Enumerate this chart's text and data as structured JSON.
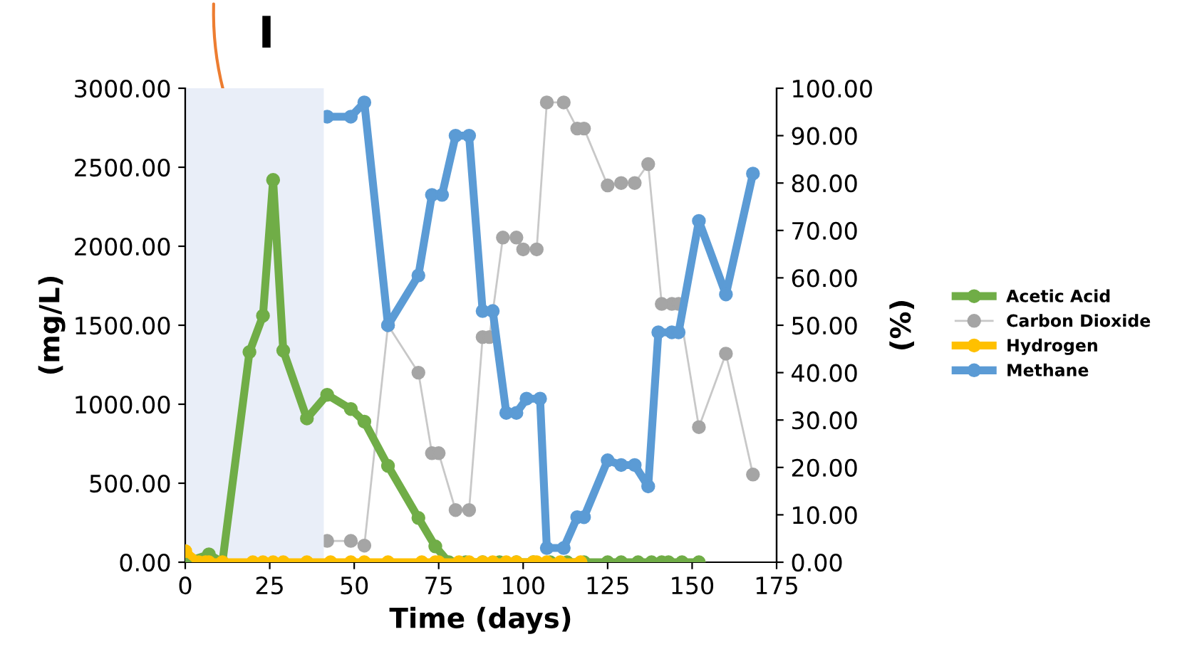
{
  "chart_data": {
    "type": "line",
    "title": "I",
    "xlabel": "Time (days)",
    "ylabel": "(mg/L)",
    "y2label": "(%)",
    "xlim": [
      0,
      175
    ],
    "xticks": [
      0,
      25,
      50,
      75,
      100,
      125,
      150,
      175
    ],
    "ylim": [
      0,
      3000
    ],
    "yticks": [
      {
        "value": 0,
        "label": "0.00"
      },
      {
        "value": 500,
        "label": "500.00"
      },
      {
        "value": 1000,
        "label": "1000.00"
      },
      {
        "value": 1500,
        "label": "1500.00"
      },
      {
        "value": 2000,
        "label": "2000.00"
      },
      {
        "value": 2500,
        "label": "2500.00"
      },
      {
        "value": 3000,
        "label": "3000.00"
      }
    ],
    "y2lim": [
      0,
      100
    ],
    "y2ticks": [
      {
        "value": 0,
        "label": "0.00"
      },
      {
        "value": 10,
        "label": "10.00"
      },
      {
        "value": 20,
        "label": "20.00"
      },
      {
        "value": 30,
        "label": "30.00"
      },
      {
        "value": 40,
        "label": "40.00"
      },
      {
        "value": 50,
        "label": "50.00"
      },
      {
        "value": 60,
        "label": "60.00"
      },
      {
        "value": 70,
        "label": "70.00"
      },
      {
        "value": 80,
        "label": "80.00"
      },
      {
        "value": 90,
        "label": "90.00"
      },
      {
        "value": 100,
        "label": "100.00"
      }
    ],
    "bands": [
      {
        "axis": "x",
        "from": 0,
        "to": 41,
        "color": "#e9eef8"
      }
    ],
    "marker": "circle",
    "grid": false,
    "legend": "right",
    "series": [
      {
        "name": "Acetic Acid",
        "color": "#70ad47",
        "x": [
          0,
          7,
          11,
          19,
          23,
          26,
          29,
          36,
          42,
          49,
          53,
          60,
          69,
          74,
          78,
          83,
          88,
          93,
          98,
          103,
          108,
          113,
          118,
          125,
          129,
          134,
          138,
          141,
          143,
          147,
          152
        ],
        "values": [
          0,
          50,
          0,
          1330,
          1560,
          2420,
          1340,
          910,
          1060,
          970,
          890,
          610,
          280,
          100,
          0,
          0,
          0,
          0,
          0,
          0,
          0,
          0,
          0,
          0,
          0,
          0,
          0,
          0,
          0,
          0,
          0
        ]
      },
      {
        "name": "Carbon Dioxide",
        "color": "#a5a5a5",
        "axis": "y2",
        "x": [
          42,
          49,
          53,
          60,
          69,
          73,
          75,
          80,
          84,
          88,
          90,
          94,
          98,
          100,
          104,
          107,
          112,
          116,
          118,
          125,
          129,
          133,
          137,
          141,
          144,
          146,
          152,
          160,
          168
        ],
        "values": [
          4.5,
          4.5,
          3.5,
          50,
          40,
          23,
          23,
          11,
          11,
          47.5,
          47.5,
          68.5,
          68.5,
          66,
          66,
          97,
          97,
          91.5,
          91.5,
          79.5,
          80,
          80,
          84,
          54.5,
          54.5,
          54.5,
          28.5,
          44,
          18.5
        ]
      },
      {
        "name": "Hydrogen",
        "color": "#ffc000",
        "x": [
          0,
          4,
          6,
          7,
          11,
          20,
          23,
          26,
          29,
          36,
          43,
          49,
          53,
          60,
          70,
          74,
          75,
          81,
          84,
          88,
          91,
          95,
          98,
          103,
          104,
          107,
          111,
          117
        ],
        "values": [
          70,
          0,
          0,
          0,
          0,
          0,
          0,
          0,
          0,
          0,
          0,
          0,
          0,
          0,
          0,
          0,
          0,
          0,
          0,
          0,
          0,
          0,
          0,
          0,
          0,
          0,
          0,
          0
        ]
      },
      {
        "name": "Methane",
        "color": "#5b9bd5",
        "axis": "y2",
        "x": [
          42,
          49,
          53,
          60,
          69,
          73,
          76,
          80,
          84,
          88,
          91,
          95,
          98,
          101,
          105,
          107,
          112,
          116,
          118,
          125,
          129,
          133,
          137,
          140,
          144,
          146,
          152,
          160,
          168
        ],
        "values": [
          94,
          94,
          97,
          50,
          60.5,
          77.5,
          77.5,
          90,
          90,
          53,
          53,
          31.5,
          31.5,
          34.5,
          34.5,
          3,
          3,
          9.5,
          9.5,
          21.5,
          20.5,
          20.5,
          16,
          48.5,
          48.5,
          48.5,
          72,
          56.5,
          82
        ]
      }
    ]
  }
}
